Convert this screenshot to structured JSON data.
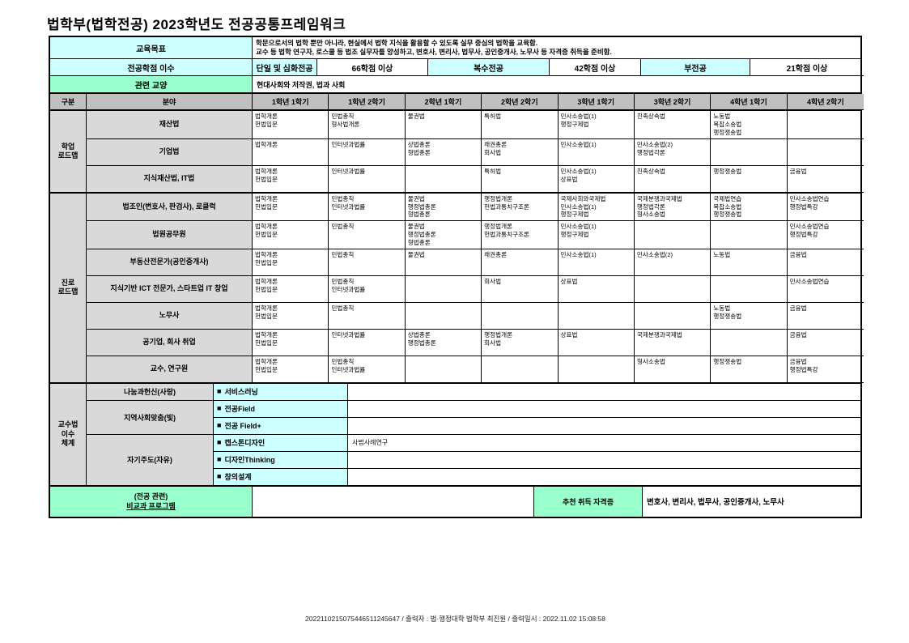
{
  "title": "법학부(법학전공) 2023학년도 전공공통프레임워크",
  "goal": {
    "label": "교육목표",
    "line1": "학문으로서의 법학 뿐만 아니라, 현실에서 법학 지식을 활용할 수 있도록 실무 중심의 법학을 교육함.",
    "line2": "교수 등 법학 연구자, 로스쿨 등 법조 실무자를 양성하고, 변호사, 변리사, 법무사, 공인중개사, 노무사 등 자격증 취득을 준비함."
  },
  "credits": {
    "label": "전공학점 이수",
    "items": [
      {
        "name": "단일 및 심화전공",
        "value": "66학점 이상"
      },
      {
        "name": "복수전공",
        "value": "42학점 이상"
      },
      {
        "name": "부전공",
        "value": "21학점 이상"
      }
    ]
  },
  "liberal": {
    "label": "관련 교양",
    "value": "현대사회와 저작권, 법과 사회"
  },
  "grid_header": {
    "gubun": "구분",
    "bunya": "분야",
    "semesters": [
      "1학년 1학기",
      "1학년 2학기",
      "2학년 1학기",
      "2학년 2학기",
      "3학년 1학기",
      "3학년 2학기",
      "4학년 1학기",
      "4학년 2학기"
    ]
  },
  "sections": [
    {
      "gubun": [
        "학업",
        "로드맵"
      ],
      "rows": [
        {
          "label": "재산법",
          "cells": [
            [
              "법학개론",
              "헌법입문"
            ],
            [
              "민법총칙",
              "형사법개론"
            ],
            [
              "물권법"
            ],
            [
              "특허법"
            ],
            [
              "민사소송법(1)",
              "행정구제법"
            ],
            [
              "친족상속법"
            ],
            [
              "노동법",
              "복잡소송법",
              "행정쟁송법"
            ],
            []
          ]
        },
        {
          "label": "기업법",
          "cells": [
            [
              "법학개론"
            ],
            [
              "인터넷과법률"
            ],
            [
              "상법총론",
              "형법총론"
            ],
            [
              "채권총론",
              "회사법"
            ],
            [
              "민사소송법(1)"
            ],
            [
              "민사소송법(2)",
              "행정법각론"
            ],
            [],
            []
          ]
        },
        {
          "label": "지식재산법, IT법",
          "cells": [
            [
              "법학개론",
              "헌법입문"
            ],
            [
              "인터넷과법률"
            ],
            [],
            [
              "특허법"
            ],
            [
              "민사소송법(1)",
              "상표법"
            ],
            [
              "친족상속법"
            ],
            [
              "행정쟁송법"
            ],
            [
              "금융법"
            ]
          ]
        }
      ]
    },
    {
      "gubun": [
        "진로",
        "로드맵"
      ],
      "rows": [
        {
          "label": "법조인(변호사, 판검사), 로클럭",
          "cells": [
            [
              "법학개론",
              "헌법입문"
            ],
            [
              "민법총칙",
              "인터넷과법률"
            ],
            [
              "물권법",
              "행정법총론",
              "형법총론"
            ],
            [
              "행정법개론",
              "헌법과통치구조론"
            ],
            [
              "국제사회와국제법",
              "민사소송법(1)",
              "행정구제법"
            ],
            [
              "국제분쟁과국제법",
              "행정법각론",
              "형사소송법"
            ],
            [
              "국제법연습",
              "복잡소송법",
              "행정쟁송법"
            ],
            [
              "민사소송법연습",
              "행정법특강"
            ]
          ]
        },
        {
          "label": "법원공무원",
          "cells": [
            [
              "법학개론",
              "헌법입문"
            ],
            [
              "민법총칙"
            ],
            [
              "물권법",
              "행정법총론",
              "형법총론"
            ],
            [
              "행정법개론",
              "헌법과통치구조론"
            ],
            [
              "민사소송법(1)",
              "행정구제법"
            ],
            [],
            [],
            [
              "민사소송법연습",
              "행정법특강"
            ]
          ]
        },
        {
          "label": "부동산전문가(공인중개사)",
          "cells": [
            [
              "법학개론",
              "헌법입문"
            ],
            [
              "민법총칙"
            ],
            [
              "물권법"
            ],
            [
              "채권총론"
            ],
            [
              "민사소송법(1)"
            ],
            [
              "민사소송법(2)"
            ],
            [
              "노동법"
            ],
            [
              "금융법"
            ]
          ]
        },
        {
          "label": "지식기반 ICT 전문가, 스타트업 IT 창업",
          "cells": [
            [
              "법학개론",
              "헌법입문"
            ],
            [
              "민법총칙",
              "인터넷과법률"
            ],
            [],
            [
              "회사법"
            ],
            [
              "상표법"
            ],
            [],
            [],
            [
              "민사소송법연습"
            ]
          ]
        },
        {
          "label": "노무사",
          "cells": [
            [
              "법학개론",
              "헌법입문"
            ],
            [
              "민법총칙"
            ],
            [],
            [],
            [],
            [],
            [
              "노동법",
              "행정쟁송법"
            ],
            [
              "금융법"
            ]
          ]
        },
        {
          "label": "공기업, 회사 취업",
          "cells": [
            [
              "법학개론",
              "헌법입문"
            ],
            [
              "인터넷과법률"
            ],
            [
              "상법총론",
              "행정법총론"
            ],
            [
              "행정법개론",
              "회사법"
            ],
            [
              "상표법"
            ],
            [
              "국제분쟁과국제법"
            ],
            [],
            [
              "금융법"
            ]
          ]
        },
        {
          "label": "교수, 연구원",
          "cells": [
            [
              "법학개론",
              "헌법입문"
            ],
            [
              "민법총칙",
              "인터넷과법률"
            ],
            [],
            [],
            [],
            [
              "형사소송법"
            ],
            [
              "행정쟁송법"
            ],
            [
              "금융법",
              "행정법특강"
            ]
          ]
        }
      ]
    }
  ],
  "pedagogy": {
    "gubun": [
      "교수법",
      "이수",
      "체계"
    ],
    "checkbox_icon": "■",
    "groups": [
      {
        "label": "나눔과헌신(사랑)",
        "items": [
          {
            "name": "서비스러닝",
            "content": ""
          }
        ]
      },
      {
        "label": "지역사회맞춤(빛)",
        "items": [
          {
            "name": "전공Field",
            "content": ""
          },
          {
            "name": "전공 Field+",
            "content": ""
          }
        ]
      },
      {
        "label": "자기주도(자유)",
        "items": [
          {
            "name": "캡스톤디자인",
            "content": "사법사례연구"
          },
          {
            "name": "디자인Thinking",
            "content": ""
          },
          {
            "name": "창의설계",
            "content": ""
          }
        ]
      }
    ]
  },
  "extra": {
    "label_line1": "(전공 관련)",
    "label_line2": "비교과 프로그램",
    "cert_label": "추천 취득 자격증",
    "certs": "변호사, 변리사, 법무사, 공인중개사, 노무사"
  },
  "footer": "2022110215075446511245647 / 출력자 : 법·행정대학 법학부 최진원 / 출력일시 : 2022.11.02 15:08:58"
}
